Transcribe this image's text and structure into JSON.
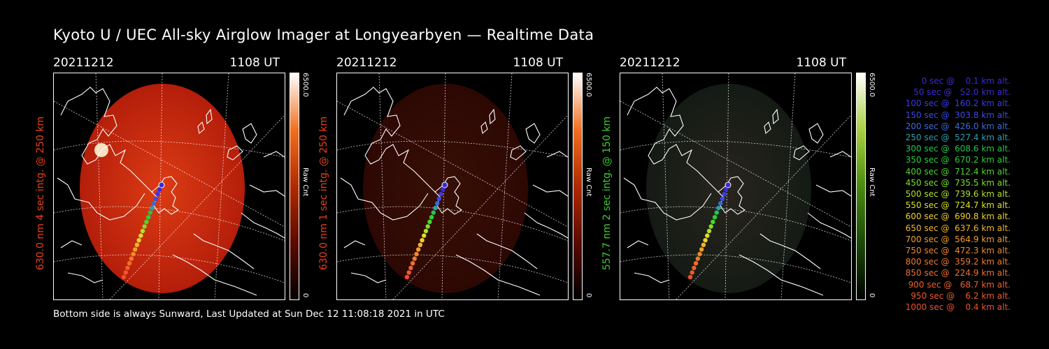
{
  "title": "Kyoto U / UEC All-sky Airglow Imager at Longyearbyen — Realtime Data",
  "footer": "Bottom side is always Sunward, Last Updated at Sun Dec 12 11:08:18 2021 in UTC",
  "panels": [
    {
      "date": "20211212",
      "time": "1108 UT",
      "side_label": "630.0 nm 4 sec intg. @ 250 km",
      "label_color": "#e8401a",
      "colorbar_max": "6500.0",
      "colorbar_min": "0",
      "colorbar_label": "Raw Cnt",
      "brightness": 1.0,
      "hue": "red"
    },
    {
      "date": "20211212",
      "time": "1108 UT",
      "side_label": "630.0 nm 1 sec intg. @ 250 km",
      "label_color": "#e8401a",
      "colorbar_max": "6500.0",
      "colorbar_min": "0",
      "colorbar_label": "Raw Cnt",
      "brightness": 0.25,
      "hue": "red"
    },
    {
      "date": "20211212",
      "time": "1108 UT",
      "side_label": "557.7 nm 2 sec intg. @ 150 km",
      "label_color": "#3ecf2c",
      "colorbar_max": "6500.0",
      "colorbar_min": "0",
      "colorbar_label": "Raw Cnt",
      "brightness": 0.3,
      "hue": "green"
    }
  ],
  "legend": [
    {
      "text": "0 sec @    0.1 km alt.",
      "color": "#3a2bd8"
    },
    {
      "text": "50 sec @   52.0 km alt.",
      "color": "#3a2bd8"
    },
    {
      "text": "100 sec @  160.2 km alt.",
      "color": "#3a3ae8"
    },
    {
      "text": "150 sec @  303.8 km alt.",
      "color": "#3a4ae8"
    },
    {
      "text": "200 sec @  426.0 km alt.",
      "color": "#3a6ad8"
    },
    {
      "text": "250 sec @  527.4 km alt.",
      "color": "#2aa0b0"
    },
    {
      "text": "300 sec @  608.6 km alt.",
      "color": "#1ec850"
    },
    {
      "text": "350 sec @  670.2 km alt.",
      "color": "#2ad03a"
    },
    {
      "text": "400 sec @  712.4 km alt.",
      "color": "#4ad82a"
    },
    {
      "text": "450 sec @  735.5 km alt.",
      "color": "#7ae02a"
    },
    {
      "text": "500 sec @  739.6 km alt.",
      "color": "#b0e02a"
    },
    {
      "text": "550 sec @  724.7 km alt.",
      "color": "#d8e02a"
    },
    {
      "text": "600 sec @  690.8 km alt.",
      "color": "#f0d02a"
    },
    {
      "text": "650 sec @  637.6 km alt.",
      "color": "#f0b82a"
    },
    {
      "text": "700 sec @  564.9 km alt.",
      "color": "#f0a02a"
    },
    {
      "text": "750 sec @  472.3 km alt.",
      "color": "#f08a2a"
    },
    {
      "text": "800 sec @  359.2 km alt.",
      "color": "#f07a2a"
    },
    {
      "text": "850 sec @  224.9 km alt.",
      "color": "#f0702a"
    },
    {
      "text": "900 sec @   68.7 km alt.",
      "color": "#f0602a"
    },
    {
      "text": "950 sec @    6.2 km alt.",
      "color": "#f05a2a"
    },
    {
      "text": "1000 sec @    0.4 km alt.",
      "color": "#f0502a"
    }
  ]
}
